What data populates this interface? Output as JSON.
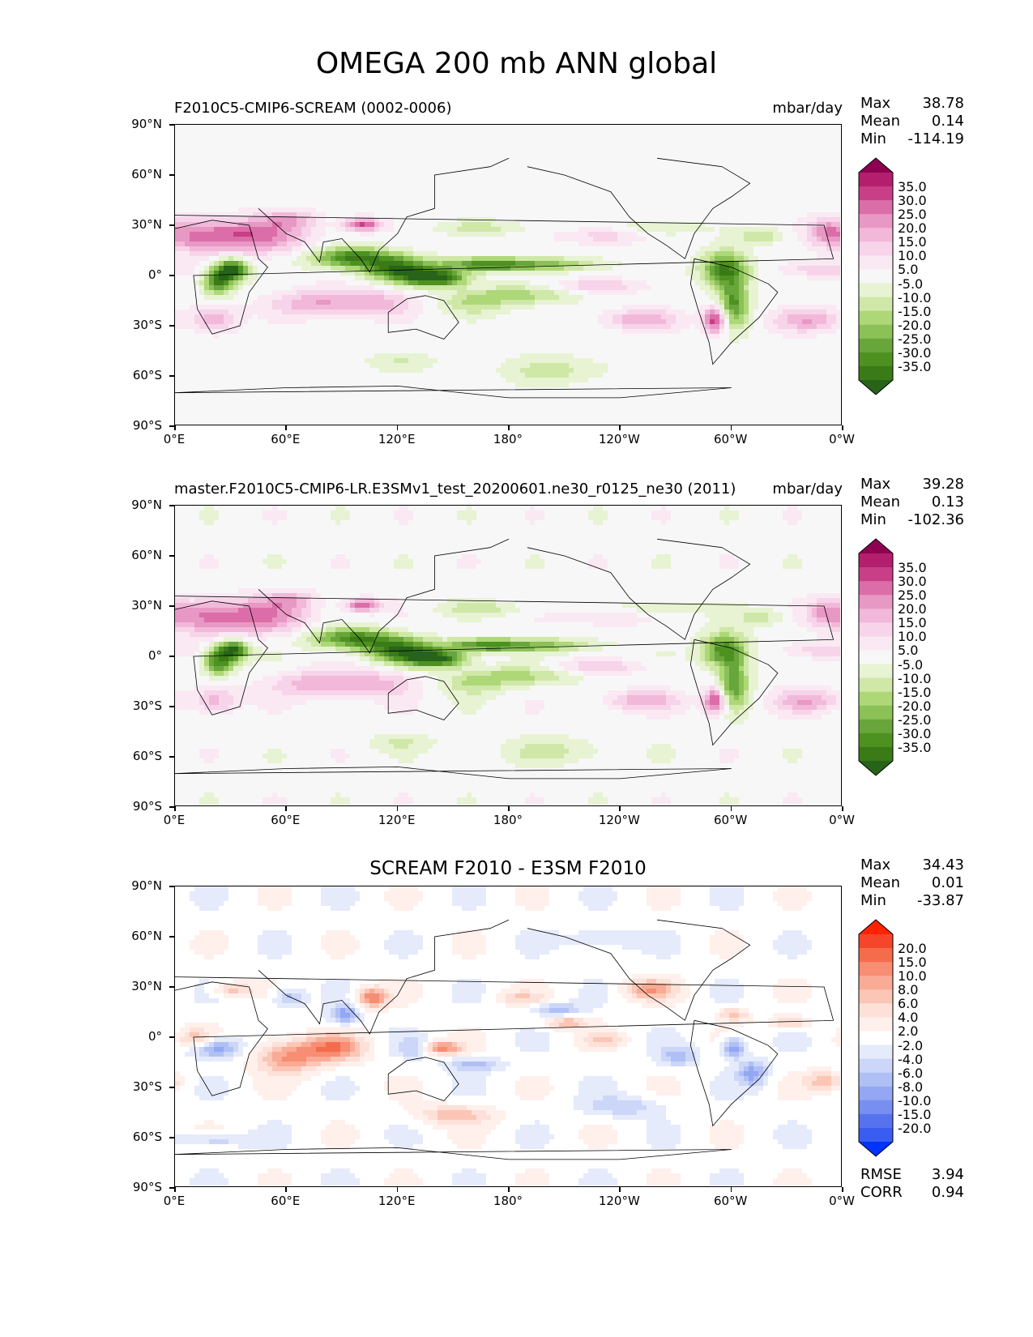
{
  "chart_data": {
    "type": "heatmap",
    "title": "OMEGA 200 mb ANN global",
    "x_ticks": [
      "0°E",
      "60°E",
      "120°E",
      "180°",
      "120°W",
      "60°W",
      "0°W"
    ],
    "y_ticks": [
      "90°N",
      "60°N",
      "30°N",
      "0°",
      "30°S",
      "60°S",
      "90°S"
    ],
    "xlim": [
      0,
      360
    ],
    "ylim": [
      -90,
      90
    ],
    "panels": [
      {
        "name": "test",
        "title_left": "F2010C5-CMIP6-SCREAM (0002-0006)",
        "title_center": "",
        "units": "mbar/day",
        "stats": {
          "max_label": "Max",
          "max": "38.78",
          "mean_label": "Mean",
          "mean": "0.14",
          "min_label": "Min",
          "min": "-114.19"
        },
        "colorbar": {
          "labels": [
            "35.0",
            "30.0",
            "25.0",
            "20.0",
            "15.0",
            "10.0",
            "5.0",
            "-5.0",
            "-10.0",
            "-15.0",
            "-20.0",
            "-25.0",
            "-30.0",
            "-35.0"
          ],
          "colors": [
            "#8e0152",
            "#b41f6d",
            "#c83e87",
            "#db6ea8",
            "#e898c4",
            "#f2b8d9",
            "#f7d4e9",
            "#fae9f3",
            "#f7f7f7",
            "#e7f3d3",
            "#cfe8a8",
            "#aed878",
            "#8bc156",
            "#68a53a",
            "#4d9221",
            "#3a7a17",
            "#276419"
          ]
        }
      },
      {
        "name": "reference",
        "title_left": "master.F2010C5-CMIP6-LR.E3SMv1_test_20200601.ne30_r0125_ne30 (2011)",
        "title_center": "",
        "units": "mbar/day",
        "stats": {
          "max_label": "Max",
          "max": "39.28",
          "mean_label": "Mean",
          "mean": "0.13",
          "min_label": "Min",
          "min": "-102.36"
        },
        "colorbar": {
          "labels": [
            "35.0",
            "30.0",
            "25.0",
            "20.0",
            "15.0",
            "10.0",
            "5.0",
            "-5.0",
            "-10.0",
            "-15.0",
            "-20.0",
            "-25.0",
            "-30.0",
            "-35.0"
          ],
          "colors": [
            "#8e0152",
            "#b41f6d",
            "#c83e87",
            "#db6ea8",
            "#e898c4",
            "#f2b8d9",
            "#f7d4e9",
            "#fae9f3",
            "#f7f7f7",
            "#e7f3d3",
            "#cfe8a8",
            "#aed878",
            "#8bc156",
            "#68a53a",
            "#4d9221",
            "#3a7a17",
            "#276419"
          ]
        }
      },
      {
        "name": "difference",
        "title_left": "",
        "title_center": "SCREAM F2010 - E3SM F2010",
        "units": "",
        "stats": {
          "max_label": "Max",
          "max": "34.43",
          "mean_label": "Mean",
          "mean": "0.01",
          "min_label": "Min",
          "min": "-33.87"
        },
        "colorbar": {
          "labels": [
            "20.0",
            "15.0",
            "10.0",
            "8.0",
            "6.0",
            "4.0",
            "2.0",
            "-2.0",
            "-4.0",
            "-6.0",
            "-8.0",
            "-10.0",
            "-15.0",
            "-20.0"
          ],
          "colors": [
            "#ff2200",
            "#f5452a",
            "#f56c4d",
            "#f78d72",
            "#f9ab95",
            "#fbc6b6",
            "#fde1d8",
            "#fff0ec",
            "#ffffff",
            "#e5ebfb",
            "#ccd6f8",
            "#b0c0f5",
            "#93a7f2",
            "#768ff0",
            "#5673ed",
            "#3a5cf0",
            "#0033ff"
          ]
        },
        "footer": {
          "rmse_label": "RMSE",
          "rmse": "3.94",
          "corr_label": "CORR",
          "corr": "0.94"
        }
      }
    ]
  }
}
